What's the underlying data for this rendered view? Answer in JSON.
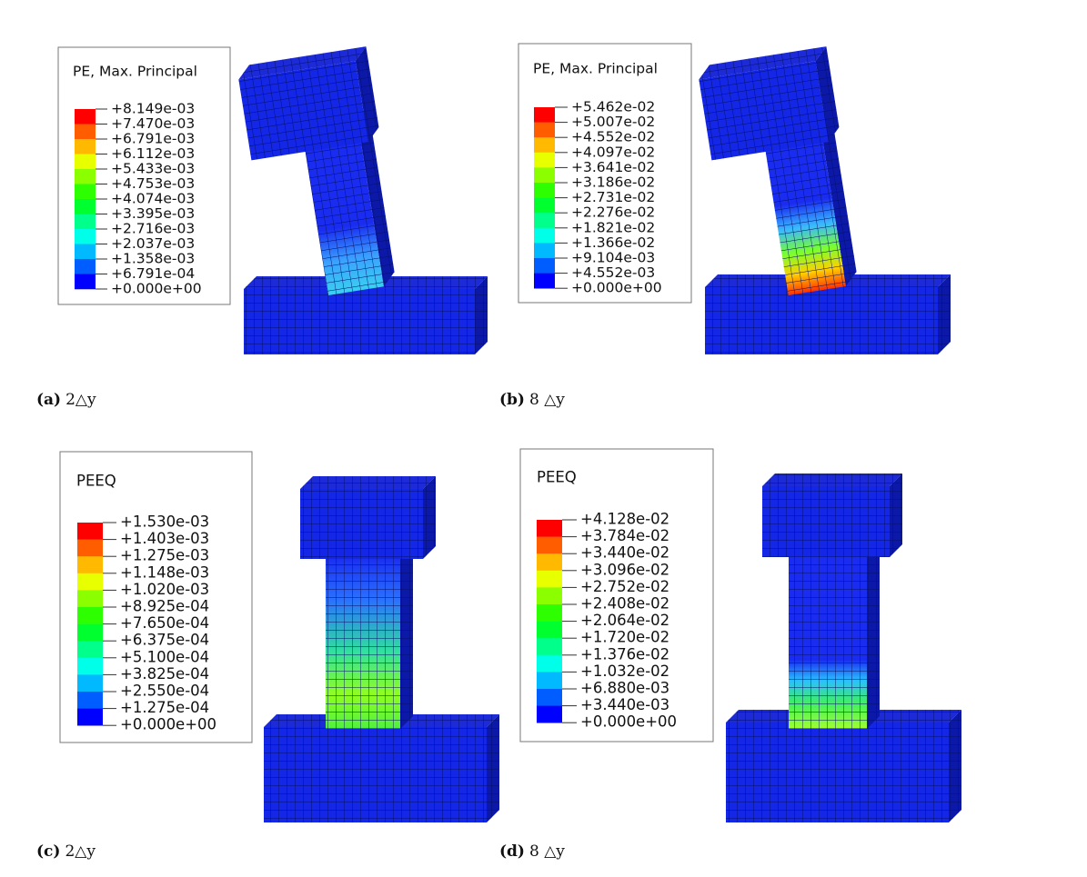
{
  "panels": [
    {
      "label": "(a)",
      "caption": "2△y",
      "legend": {
        "title": "PE, Max. Principal",
        "levels": [
          "+8.149e-03",
          "+7.470e-03",
          "+6.791e-03",
          "+6.112e-03",
          "+5.433e-03",
          "+4.753e-03",
          "+4.074e-03",
          "+3.395e-03",
          "+2.716e-03",
          "+2.037e-03",
          "+1.358e-03",
          "+6.791e-04",
          "+0.000e+00"
        ]
      }
    },
    {
      "label": "(b)",
      "caption": "8 △y",
      "legend": {
        "title": "PE, Max. Principal",
        "levels": [
          "+5.462e-02",
          "+5.007e-02",
          "+4.552e-02",
          "+4.097e-02",
          "+3.641e-02",
          "+3.186e-02",
          "+2.731e-02",
          "+2.276e-02",
          "+1.821e-02",
          "+1.366e-02",
          "+9.104e-03",
          "+4.552e-03",
          "+0.000e+00"
        ]
      }
    },
    {
      "label": "(c)",
      "caption": "2△y",
      "legend": {
        "title": "PEEQ",
        "levels": [
          "+1.530e-03",
          "+1.403e-03",
          "+1.275e-03",
          "+1.148e-03",
          "+1.020e-03",
          "+8.925e-04",
          "+7.650e-04",
          "+6.375e-04",
          "+5.100e-04",
          "+3.825e-04",
          "+2.550e-04",
          "+1.275e-04",
          "+0.000e+00"
        ]
      }
    },
    {
      "label": "(d)",
      "caption": "8 △y",
      "legend": {
        "title": "PEEQ",
        "levels": [
          "+4.128e-02",
          "+3.784e-02",
          "+3.440e-02",
          "+3.096e-02",
          "+2.752e-02",
          "+2.408e-02",
          "+2.064e-02",
          "+1.720e-02",
          "+1.376e-02",
          "+1.032e-02",
          "+6.880e-03",
          "+3.440e-03",
          "+0.000e+00"
        ]
      }
    }
  ]
}
